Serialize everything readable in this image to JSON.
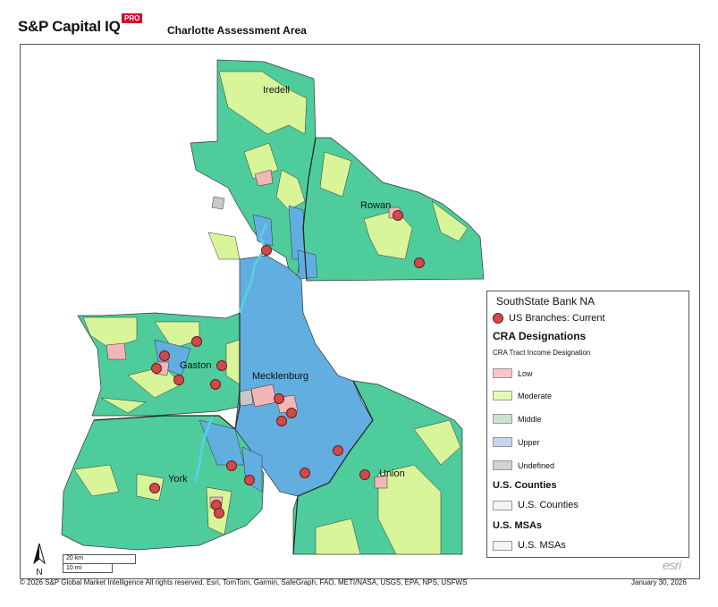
{
  "header": {
    "brand": "S&P Capital IQ",
    "pro_badge": "PRO",
    "map_title": "Charlotte Assessment Area"
  },
  "map": {
    "county_labels": [
      "Iredell",
      "Rowan",
      "Gaston",
      "Mecklenburg",
      "York",
      "Union"
    ],
    "colors": {
      "low": "#f2b6b6",
      "moderate": "#d8f59a",
      "middle": "#4fcc9c",
      "upper": "#62aee0",
      "undefined": "#c9c9c9",
      "branch": "#d04a4a",
      "water": "#58cfe0"
    }
  },
  "legend": {
    "title": "SouthState Bank NA",
    "branches_label": "US Branches: Current",
    "cra_heading": "CRA Designations",
    "cra_subheading": "CRA Tract Income Designation",
    "classes": [
      {
        "label": "Low",
        "color": "#f8c6c6"
      },
      {
        "label": "Moderate",
        "color": "#e6f8b8"
      },
      {
        "label": "Middle",
        "color": "#c8e6cd"
      },
      {
        "label": "Upper",
        "color": "#c3d6ec"
      },
      {
        "label": "Undefined",
        "color": "#d2d2d2"
      }
    ],
    "counties_heading": "U.S. Counties",
    "counties_label": "U.S. Counties",
    "msas_heading": "U.S. MSAs",
    "msas_label": "U.S. MSAs"
  },
  "scale": {
    "km": "20 km",
    "mi": "10 mi"
  },
  "north_label": "N",
  "esri_logo": "esri",
  "footer": {
    "copyright": "© 2026 S&P Global Market Intelligence All rights reserved. Esri, TomTom, Garmin, SafeGraph, FAO, METI/NASA, USGS, EPA, NPS, USFWS",
    "date": "January 30, 2026"
  }
}
